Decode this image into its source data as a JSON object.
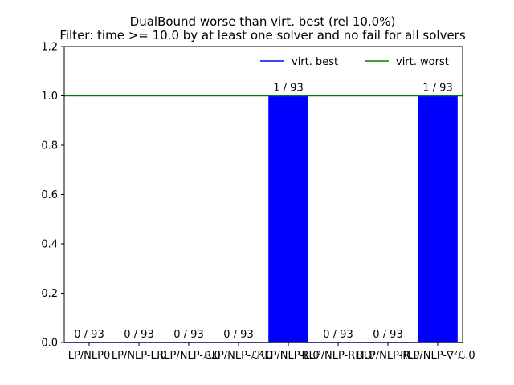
{
  "chart_data": {
    "type": "bar",
    "title": "DualBound worse than virt. best (rel 10.0%)",
    "subtitle": "Filter: time >= 10.0 by at least one solver and no fail for all solvers",
    "xlabel": "",
    "ylabel": "",
    "ylim": [
      0,
      1.2
    ],
    "yticks": [
      "0.0",
      "0.2",
      "0.4",
      "0.6",
      "0.8",
      "1.0",
      "1.2"
    ],
    "categories": [
      "LP/NLP0",
      "LP/NLP-L.0",
      "RLP/NLP-ℒ.0",
      "RLP/NLP-ℒ².0",
      "RLP/NLP-L.0",
      "RLP/NLP-RLT.0",
      "RLP/NLP-R.0",
      "RLP/NLP-∇²ℒ.0"
    ],
    "values": [
      0,
      0,
      0,
      0,
      1,
      0,
      0,
      1
    ],
    "bar_labels": [
      "0 / 93",
      "0 / 93",
      "0 / 93",
      "0 / 93",
      "1 / 93",
      "0 / 93",
      "0 / 93",
      "1 / 93"
    ],
    "bar_color": "#0000ff",
    "reference_lines": [
      {
        "name": "virt. best",
        "value": 0.0,
        "color": "#0000ff"
      },
      {
        "name": "virt. worst",
        "value": 1.0,
        "color": "#008000"
      }
    ],
    "legend": "top-right",
    "grid": false
  }
}
